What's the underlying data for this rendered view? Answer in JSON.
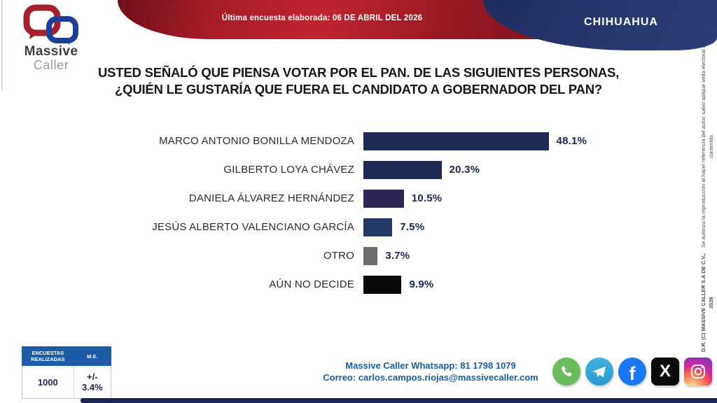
{
  "header": {
    "banner_text": "Última encuesta elaborada: 06 DE ABRIL DEL 2026",
    "state_label": "CHIHUAHUA",
    "logo": {
      "line1": "Massive",
      "line2": "Caller"
    }
  },
  "title": {
    "line1": "USTED SEÑALÓ QUE PIENSA VOTAR POR EL PAN. DE LAS SIGUIENTES PERSONAS,",
    "line2": "¿QUIÉN LE GUSTARÍA QUE FUERA EL CANDIDATO A GOBERNADOR DEL PAN?"
  },
  "chart_data": {
    "type": "bar",
    "orientation": "horizontal",
    "categories": [
      "MARCO ANTONIO BONILLA MENDOZA",
      "GILBERTO LOYA CHÁVEZ",
      "DANIELA ÁLVAREZ HERNÁNDEZ",
      "JESÚS ALBERTO VALENCIANO GARCÍA",
      "OTRO",
      "AÚN NO DECIDE"
    ],
    "values": [
      48.1,
      20.3,
      10.5,
      7.5,
      3.7,
      9.9
    ],
    "value_labels": [
      "48.1%",
      "20.3%",
      "10.5%",
      "7.5%",
      "3.7%",
      "9.9%"
    ],
    "bar_colors": [
      "#1f2a54",
      "#1f2a54",
      "#2e2657",
      "#263a66",
      "#6b6b6b",
      "#0a0a0a"
    ],
    "xlim": [
      0,
      55
    ],
    "grid": false,
    "legend": false,
    "value_label_position": "end"
  },
  "footer": {
    "stats_table": {
      "col1_header": "ENCUESTAS REALIZADAS",
      "col2_header": "M.E.",
      "col1_value": "1000",
      "col2_value": "+/- 3.4%"
    },
    "contact": {
      "whatsapp_line": "Massive Caller Whatsapp: 81 1798 1079",
      "email_line": "Correo: carlos.campos.riojas@massivecaller.com"
    },
    "social_icons": [
      "whatsapp-icon",
      "telegram-icon",
      "facebook-icon",
      "x-icon",
      "instagram-icon"
    ]
  },
  "copyright": {
    "line1": "D.R. (C) MASSIVE CALLER S.A DE C.V., 2026",
    "line2": "Se autoriza la reproducción al hacer referencia del autor, salvo aplique veda electoral al contenido."
  },
  "colors": {
    "banner_red": "#c0242f",
    "header_navy": "#27386f",
    "bar_navy": "#1f2a54",
    "bar_purple": "#2e2657",
    "bar_gray": "#6b6b6b",
    "bar_black": "#0a0a0a",
    "table_header_blue": "#1d5ba6",
    "contact_blue": "#155d9f",
    "bottom_bar_navy": "#1c2750"
  }
}
